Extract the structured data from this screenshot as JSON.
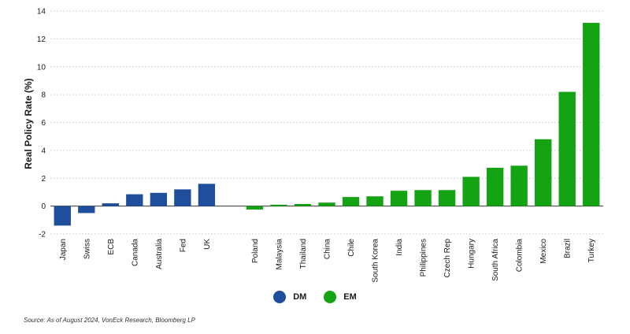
{
  "chart_data": {
    "type": "bar",
    "title": "",
    "xlabel": "",
    "ylabel": "Real Policy Rate (%)",
    "ylim": [
      -2,
      14
    ],
    "yticks": [
      -2,
      0,
      2,
      4,
      6,
      8,
      10,
      12,
      14
    ],
    "grid": "horizontal-dotted",
    "legend_position": "bottom-center",
    "series": [
      {
        "name": "DM",
        "color": "#1f4e9c",
        "categories": [
          "Japan",
          "Swiss",
          "ECB",
          "Canada",
          "Australia",
          "Fed",
          "UK"
        ],
        "values": [
          -1.4,
          -0.5,
          0.2,
          0.85,
          0.95,
          1.2,
          1.6
        ]
      },
      {
        "name": "EM",
        "color": "#13a313",
        "categories": [
          "Poland",
          "Malaysia",
          "Thailand",
          "China",
          "Chile",
          "South Korea",
          "India",
          "Philippines",
          "Czech Rep",
          "Hungary",
          "South Africa",
          "Colombia",
          "Mexico",
          "Brazil",
          "Turkey"
        ],
        "values": [
          -0.25,
          0.1,
          0.15,
          0.25,
          0.65,
          0.7,
          1.1,
          1.15,
          1.15,
          2.1,
          2.75,
          2.9,
          4.8,
          8.2,
          13.15
        ]
      }
    ]
  },
  "legend": {
    "dm_label": "DM",
    "em_label": "EM",
    "dm_color": "#1f4e9c",
    "em_color": "#13a313"
  },
  "source_text": "Source: As of August 2024, VonEck Research, Bloomberg LP"
}
